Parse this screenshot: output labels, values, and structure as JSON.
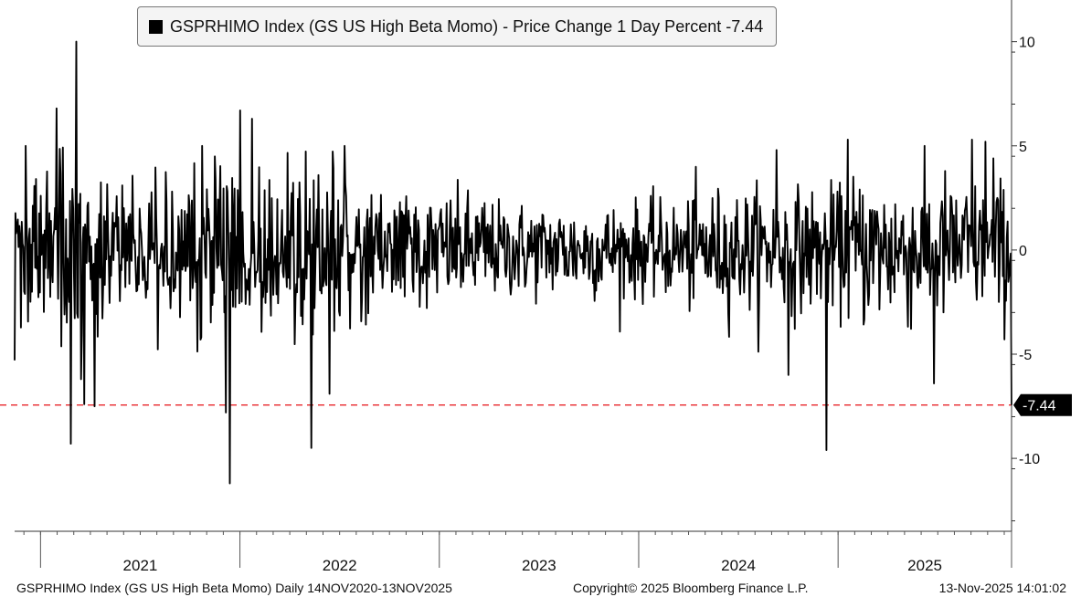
{
  "chart_data": {
    "type": "line",
    "title": "GSPRHIMO Index (GS US High Beta Momo) - Price Change 1 Day Percent -7.44",
    "legend_label": "GSPRHIMO Index (GS US High Beta Momo) - Price Change 1 Day Percent",
    "legend_value": "-7.44",
    "last_value": -7.44,
    "last_value_label": "-7.44",
    "reference_line": -7.44,
    "ylim": [
      -13.5,
      12
    ],
    "yticks": [
      -10,
      -5,
      0,
      5,
      10
    ],
    "ytick_labels": [
      "-10",
      "-5",
      "0",
      "5",
      "10"
    ],
    "x_range": [
      "2020-11-14",
      "2025-11-13"
    ],
    "x_range_years": [
      2020.87,
      2025.87
    ],
    "year_labels": [
      "2021",
      "2022",
      "2023",
      "2024",
      "2025"
    ],
    "year_boundaries": [
      2021,
      2022,
      2023,
      2024,
      2025,
      2026
    ],
    "notable_points": [
      {
        "x": 2020.87,
        "y": -5.3
      },
      {
        "x": 2021.15,
        "y": -9.3
      },
      {
        "x": 2021.18,
        "y": 10.0
      },
      {
        "x": 2021.08,
        "y": 6.8
      },
      {
        "x": 2021.22,
        "y": -7.4
      },
      {
        "x": 2021.27,
        "y": -7.5
      },
      {
        "x": 2022.0,
        "y": 6.7
      },
      {
        "x": 2021.93,
        "y": -7.8
      },
      {
        "x": 2021.95,
        "y": -11.2
      },
      {
        "x": 2022.06,
        "y": 6.3
      },
      {
        "x": 2022.36,
        "y": -9.5
      },
      {
        "x": 2022.45,
        "y": -6.9
      },
      {
        "x": 2024.69,
        "y": 4.8
      },
      {
        "x": 2024.75,
        "y": -6.0
      },
      {
        "x": 2024.94,
        "y": -9.6
      },
      {
        "x": 2025.05,
        "y": 5.3
      },
      {
        "x": 2025.48,
        "y": -6.4
      },
      {
        "x": 2025.67,
        "y": 5.3
      },
      {
        "x": 2025.74,
        "y": 5.2
      },
      {
        "x": 2025.78,
        "y": 4.4
      },
      {
        "x": 2025.87,
        "y": -7.44
      }
    ],
    "series": [
      {
        "name": "GSPRHIMO Index (GS US High Beta Momo) - Price Change 1 Day Percent",
        "frequency": "daily",
        "volatility_regimes": [
          {
            "from": 2020.87,
            "to": 2021.35,
            "sd": 2.4
          },
          {
            "from": 2021.35,
            "to": 2021.75,
            "sd": 1.5
          },
          {
            "from": 2021.75,
            "to": 2022.55,
            "sd": 2.3
          },
          {
            "from": 2022.55,
            "to": 2023.25,
            "sd": 1.5
          },
          {
            "from": 2023.25,
            "to": 2024.25,
            "sd": 1.25
          },
          {
            "from": 2024.25,
            "to": 2025.05,
            "sd": 1.6
          },
          {
            "from": 2025.05,
            "to": 2025.55,
            "sd": 2.0
          },
          {
            "from": 2025.55,
            "to": 2025.87,
            "sd": 1.8
          }
        ]
      }
    ],
    "colors": {
      "series": "#000000",
      "reference_line": "#e8262b",
      "badge": "#000000",
      "axis": "#333333"
    },
    "grid": false
  },
  "footer": {
    "left": "GSPRHIMO Index (GS US High Beta Momo) Daily 14NOV2020-13NOV2025",
    "center": "Copyright© 2025 Bloomberg Finance L.P.",
    "right": "13-Nov-2025 14:01:02"
  }
}
